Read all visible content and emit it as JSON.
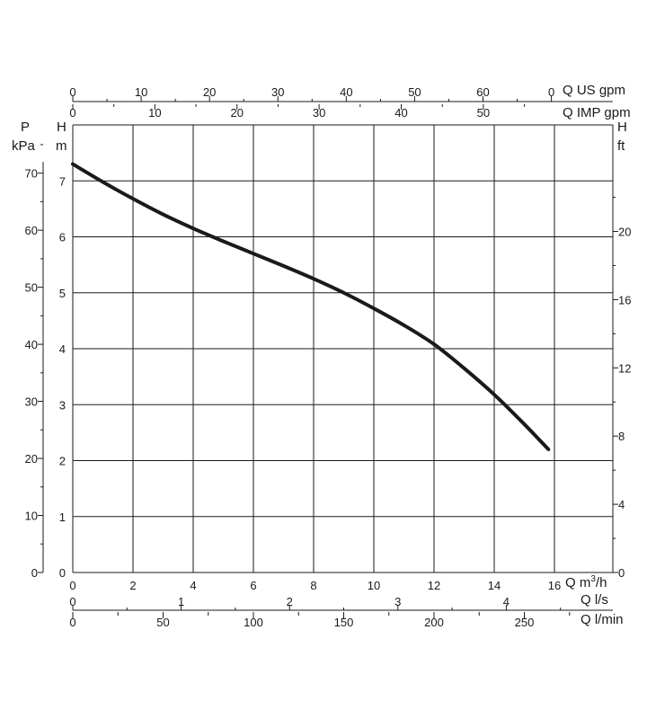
{
  "chart_data": {
    "type": "line",
    "title": "",
    "axes": {
      "us_gpm": {
        "label": "Q US gpm",
        "ticks": [
          "0",
          "10",
          "20",
          "30",
          "40",
          "50",
          "60",
          "0"
        ]
      },
      "imp_gpm": {
        "label": "Q IMP gpm",
        "ticks": [
          "0",
          "10",
          "20",
          "30",
          "40",
          "50"
        ]
      },
      "m3h": {
        "label_prefix": "Q m",
        "label_sup": "3",
        "label_suffix": "/h",
        "ticks": [
          "0",
          "2",
          "4",
          "6",
          "8",
          "10",
          "12",
          "14",
          "16"
        ],
        "xlim": [
          0,
          16
        ]
      },
      "ls": {
        "label": "Q l/s",
        "ticks": [
          "0",
          "1",
          "2",
          "3",
          "4"
        ]
      },
      "lmin": {
        "label": "Q l/min",
        "ticks": [
          "0",
          "50",
          "100",
          "150",
          "200",
          "250"
        ]
      },
      "head_m": {
        "label_top": "H",
        "label_unit": "m",
        "ticks": [
          "0",
          "1",
          "2",
          "3",
          "4",
          "5",
          "6",
          "7"
        ],
        "ylim": [
          0,
          8
        ]
      },
      "pressure_kpa": {
        "label_top": "P",
        "label_unit": "kPa",
        "ticks": [
          "0",
          "10",
          "20",
          "30",
          "40",
          "50",
          "60",
          "70"
        ]
      },
      "head_ft": {
        "label_top": "H",
        "label_unit": "ft",
        "ticks": [
          "0",
          "4",
          "8",
          "12",
          "16",
          "20"
        ]
      }
    },
    "grid": true,
    "series": [
      {
        "x": [
          0,
          1,
          2,
          3,
          4,
          5,
          6,
          7,
          8,
          9,
          10,
          11,
          12,
          13,
          14,
          15,
          15.8
        ],
        "y": [
          7.3,
          6.98,
          6.68,
          6.4,
          6.15,
          5.92,
          5.7,
          5.48,
          5.25,
          5.0,
          4.72,
          4.42,
          4.08,
          3.65,
          3.18,
          2.65,
          2.2
        ]
      }
    ]
  }
}
